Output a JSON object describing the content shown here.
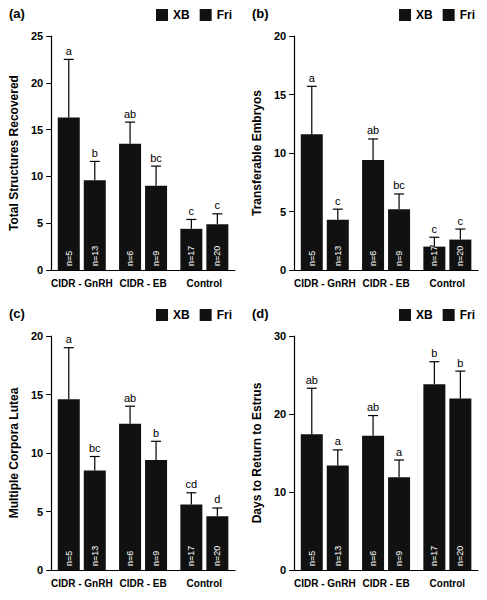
{
  "chart_data": [
    {
      "type": "bar",
      "title": "(a)",
      "ylabel": "Total Structures Recovered",
      "categories": [
        "CIDR - GnRH",
        "CIDR - EB",
        "Control"
      ],
      "series": [
        {
          "name": "XB",
          "color": "#111111",
          "values": [
            16.3,
            13.5,
            4.4
          ],
          "errors": [
            6.2,
            2.3,
            1.0
          ],
          "letters": [
            "a",
            "ab",
            "c"
          ],
          "n_labels": [
            "n=5",
            "n=6",
            "n=17"
          ]
        },
        {
          "name": "Fri",
          "color": "#111111",
          "values": [
            9.6,
            9.0,
            4.9
          ],
          "errors": [
            2.0,
            2.1,
            1.1
          ],
          "letters": [
            "b",
            "bc",
            "c"
          ],
          "n_labels": [
            "n=13",
            "n=9",
            "n=20"
          ]
        }
      ],
      "ylim": [
        0,
        25
      ],
      "yticks": [
        0,
        5,
        10,
        15,
        20,
        25
      ],
      "grid": false,
      "legend": "upper right"
    },
    {
      "type": "bar",
      "title": "(b)",
      "ylabel": "Transferable Embryos",
      "categories": [
        "CIDR - GnRH",
        "CIDR - EB",
        "Control"
      ],
      "series": [
        {
          "name": "XB",
          "color": "#111111",
          "values": [
            11.6,
            9.4,
            2.0
          ],
          "errors": [
            4.1,
            1.8,
            0.8
          ],
          "letters": [
            "a",
            "ab",
            "c"
          ],
          "n_labels": [
            "n=5",
            "n=6",
            "n=17"
          ]
        },
        {
          "name": "Fri",
          "color": "#111111",
          "values": [
            4.3,
            5.2,
            2.6
          ],
          "errors": [
            0.9,
            1.3,
            0.9
          ],
          "letters": [
            "c",
            "bc",
            "c"
          ],
          "n_labels": [
            "n=13",
            "n=9",
            "n=20"
          ]
        }
      ],
      "ylim": [
        0,
        20
      ],
      "yticks": [
        0,
        5,
        10,
        15,
        20
      ],
      "grid": false,
      "legend": "upper right"
    },
    {
      "type": "bar",
      "title": "(c)",
      "ylabel": "Multiple Corpora Lutea",
      "categories": [
        "CIDR - GnRH",
        "CIDR - EB",
        "Control"
      ],
      "series": [
        {
          "name": "XB",
          "color": "#111111",
          "values": [
            14.6,
            12.5,
            5.6
          ],
          "errors": [
            4.4,
            1.5,
            1.0
          ],
          "letters": [
            "a",
            "ab",
            "cd"
          ],
          "n_labels": [
            "n=5",
            "n=6",
            "n=17"
          ]
        },
        {
          "name": "Fri",
          "color": "#111111",
          "values": [
            8.5,
            9.4,
            4.6
          ],
          "errors": [
            1.2,
            1.6,
            0.7
          ],
          "letters": [
            "bc",
            "b",
            "d"
          ],
          "n_labels": [
            "n=13",
            "n=9",
            "n=20"
          ]
        }
      ],
      "ylim": [
        0,
        20
      ],
      "yticks": [
        0,
        5,
        10,
        15,
        20
      ],
      "grid": false,
      "legend": "upper right"
    },
    {
      "type": "bar",
      "title": "(d)",
      "ylabel": "Days to Return to Estrus",
      "categories": [
        "CIDR - GnRH",
        "CIDR - EB",
        "Control"
      ],
      "series": [
        {
          "name": "XB",
          "color": "#111111",
          "values": [
            17.4,
            17.2,
            23.8
          ],
          "errors": [
            5.9,
            2.6,
            2.9
          ],
          "letters": [
            "ab",
            "ab",
            "b"
          ],
          "n_labels": [
            "n=5",
            "n=6",
            "n=17"
          ]
        },
        {
          "name": "Fri",
          "color": "#111111",
          "values": [
            13.4,
            11.9,
            22.0
          ],
          "errors": [
            2.0,
            2.2,
            3.5
          ],
          "letters": [
            "a",
            "a",
            "b"
          ],
          "n_labels": [
            "n=13",
            "n=9",
            "n=20"
          ]
        }
      ],
      "ylim": [
        0,
        30
      ],
      "yticks": [
        0,
        10,
        20,
        30
      ],
      "grid": false,
      "legend": "upper right"
    }
  ]
}
